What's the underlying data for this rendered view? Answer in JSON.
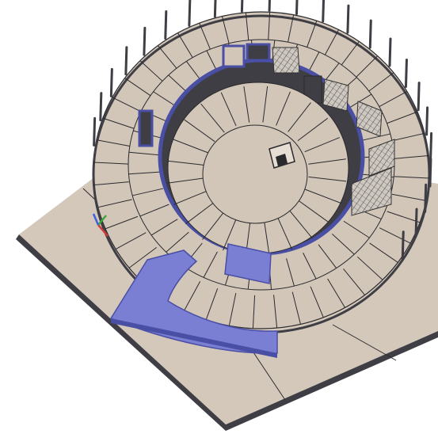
{
  "colors": {
    "background": "#ffffff",
    "floor": "#d4c8bb",
    "ring_floor": "#d2c6b8",
    "wall_dark": "#3e3e44",
    "edge": "#2a2a2e",
    "highlight": "#7a7fd4",
    "highlight_edge": "#4a4fa6",
    "axis_x": "#d23a3a",
    "axis_y": "#38a838",
    "axis_z": "#3f5ee0"
  },
  "icons": {
    "axis_gizmo": "xyz-axis-gizmo-icon"
  },
  "scene": {
    "kind": "isometric-3d-architectural-model",
    "selected_elements": [
      "ramp-slab",
      "wall-band"
    ]
  }
}
